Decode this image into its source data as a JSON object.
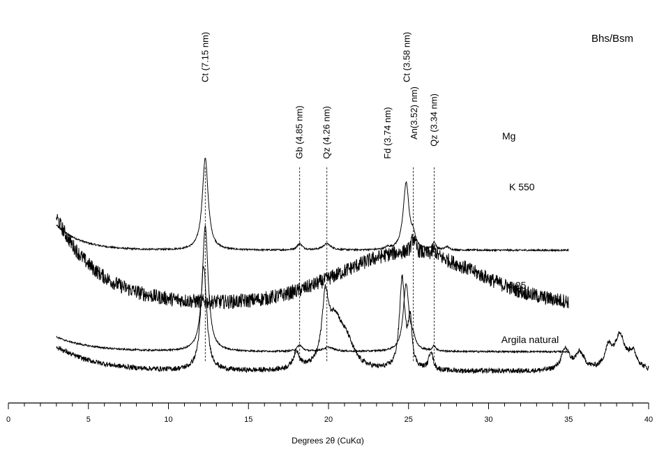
{
  "chart_data": {
    "type": "line",
    "title": "",
    "panel_label": "Bhs/Bsm",
    "xlabel": "Degrees 2θ (CuKα)",
    "ylabel": "",
    "xlim": [
      0,
      40
    ],
    "xticks": [
      0,
      5,
      10,
      15,
      20,
      25,
      30,
      35,
      40
    ],
    "y_axis_shown": false,
    "grid": false,
    "legend": "inline labels right of traces",
    "series": [
      {
        "name": "Mg",
        "x_range": [
          3,
          35
        ],
        "baseline": 0.57,
        "start_rise": 0.12,
        "decay": 1.6,
        "noise": 0.004,
        "broad_humps": [],
        "peaks": [
          {
            "x": 12.3,
            "h": 0.44,
            "w": 0.22
          },
          {
            "x": 18.2,
            "h": 0.03,
            "w": 0.2
          },
          {
            "x": 19.9,
            "h": 0.03,
            "w": 0.3
          },
          {
            "x": 23.7,
            "h": 0.01,
            "w": 0.15
          },
          {
            "x": 24.85,
            "h": 0.32,
            "w": 0.22
          },
          {
            "x": 25.3,
            "h": 0.05,
            "w": 0.15
          },
          {
            "x": 26.6,
            "h": 0.035,
            "w": 0.12
          },
          {
            "x": 27.4,
            "h": 0.015,
            "w": 0.15
          }
        ]
      },
      {
        "name": "K 550",
        "x_range": [
          3,
          35
        ],
        "baseline": 0.31,
        "start_rise": 0.42,
        "decay": 2.6,
        "noise": 0.035,
        "broad_humps": [
          {
            "x": 25,
            "h": 0.25,
            "w": 6
          }
        ],
        "peaks": [
          {
            "x": 25.3,
            "h": 0.07,
            "w": 0.15
          },
          {
            "x": 26.6,
            "h": 0.03,
            "w": 0.15
          }
        ]
      },
      {
        "name": "K 25",
        "x_range": [
          3,
          35
        ],
        "baseline": 0.085,
        "start_rise": 0.07,
        "decay": 2.2,
        "noise": 0.004,
        "broad_humps": [],
        "peaks": [
          {
            "x": 12.3,
            "h": 0.6,
            "w": 0.22
          },
          {
            "x": 18.2,
            "h": 0.03,
            "w": 0.2
          },
          {
            "x": 20.0,
            "h": 0.02,
            "w": 0.4
          },
          {
            "x": 24.85,
            "h": 0.32,
            "w": 0.22
          },
          {
            "x": 25.3,
            "h": 0.04,
            "w": 0.15
          },
          {
            "x": 26.6,
            "h": 0.025,
            "w": 0.12
          }
        ]
      },
      {
        "name": "Argila natural",
        "x_range": [
          3,
          40
        ],
        "baseline": -0.01,
        "start_rise": 0.12,
        "decay": 2.5,
        "noise": 0.012,
        "broad_humps": [],
        "peaks": [
          {
            "x": 12.2,
            "h": 0.5,
            "w": 0.22
          },
          {
            "x": 18.0,
            "h": 0.08,
            "w": 0.25
          },
          {
            "x": 19.8,
            "h": 0.3,
            "w": 0.25
          },
          {
            "x": 20.4,
            "h": 0.2,
            "w": 0.5
          },
          {
            "x": 21.1,
            "h": 0.12,
            "w": 0.6
          },
          {
            "x": 24.6,
            "h": 0.43,
            "w": 0.2
          },
          {
            "x": 25.1,
            "h": 0.22,
            "w": 0.15
          },
          {
            "x": 26.4,
            "h": 0.09,
            "w": 0.15
          },
          {
            "x": 34.8,
            "h": 0.1,
            "w": 0.3
          },
          {
            "x": 35.7,
            "h": 0.08,
            "w": 0.35
          },
          {
            "x": 37.5,
            "h": 0.1,
            "w": 0.3
          },
          {
            "x": 38.2,
            "h": 0.16,
            "w": 0.35
          },
          {
            "x": 39.0,
            "h": 0.08,
            "w": 0.35
          }
        ]
      }
    ],
    "peak_labels": [
      {
        "x": 12.3,
        "text": "Ct (7.15 nm)"
      },
      {
        "x": 18.2,
        "text": "Gb (4.85 nm)"
      },
      {
        "x": 19.9,
        "text": "Qz (4.26 nm)"
      },
      {
        "x": 23.7,
        "text": "Fd (3.74 nm)"
      },
      {
        "x": 24.9,
        "text": "Ct (3.58 nm)"
      },
      {
        "x": 25.35,
        "text": "An(3.52) nm)"
      },
      {
        "x": 26.6,
        "text": "Qz (3.34 nm)"
      }
    ],
    "dashed_lines_x": [
      12.3,
      18.2,
      19.9,
      25.3,
      26.6
    ]
  }
}
